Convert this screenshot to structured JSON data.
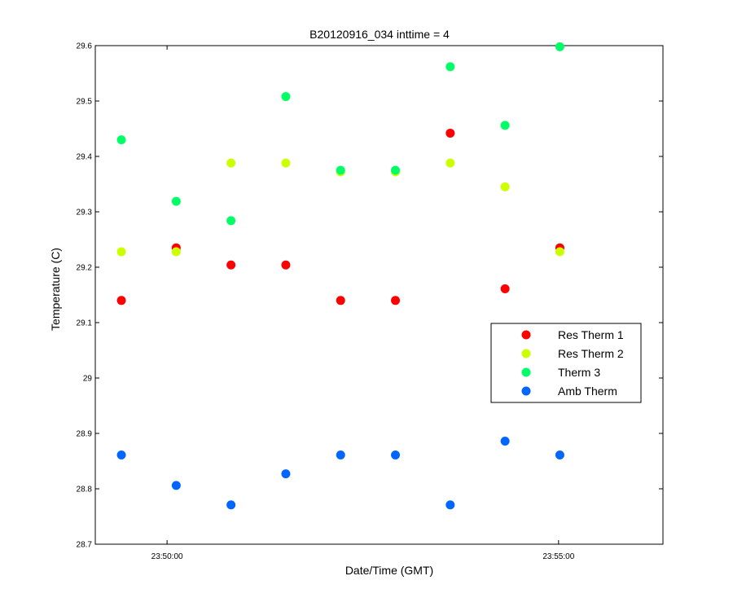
{
  "chart_data": {
    "type": "scatter",
    "title": "B20120916_034 inttime = 4",
    "xlabel": "Date/Time (GMT)",
    "ylabel": "Temperature (C)",
    "xlim": [
      "23:49:05",
      "23:56:20"
    ],
    "ylim": [
      28.7,
      29.6
    ],
    "x_ticks": [
      "23:50:00",
      "23:55:00"
    ],
    "y_ticks": [
      28.7,
      28.8,
      28.9,
      29,
      29.1,
      29.2,
      29.3,
      29.4,
      29.5,
      29.6
    ],
    "grid": false,
    "legend_position": "right",
    "x": [
      "23:49:25",
      "23:50:07",
      "23:50:49",
      "23:51:31",
      "23:52:13",
      "23:52:55",
      "23:53:37",
      "23:54:19",
      "23:55:01"
    ],
    "series": [
      {
        "name": "Res Therm 1",
        "color": "#ff0000",
        "values": [
          29.14,
          29.235,
          29.204,
          29.204,
          29.14,
          29.14,
          29.442,
          29.161,
          29.235
        ]
      },
      {
        "name": "Res Therm 2",
        "color": "#ccff00",
        "values": [
          29.228,
          29.228,
          29.388,
          29.388,
          29.372,
          29.372,
          29.388,
          29.345,
          29.228
        ]
      },
      {
        "name": "Therm 3",
        "color": "#00ff66",
        "values": [
          29.43,
          29.319,
          29.284,
          29.508,
          29.375,
          29.375,
          29.562,
          29.456,
          29.598
        ]
      },
      {
        "name": "Amb Therm",
        "color": "#0066ff",
        "values": [
          28.861,
          28.806,
          28.771,
          28.827,
          28.861,
          28.861,
          28.771,
          28.886,
          28.861
        ]
      }
    ]
  }
}
